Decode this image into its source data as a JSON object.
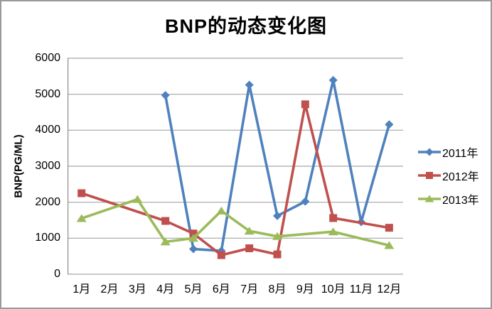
{
  "chart_data": {
    "type": "line",
    "title": "BNP的动态变化图",
    "ylabel": "BNP(PG/ML)",
    "xlabel": "",
    "ylim": [
      0,
      6000
    ],
    "y_ticks": [
      0,
      1000,
      2000,
      3000,
      4000,
      5000,
      6000
    ],
    "categories": [
      "1月",
      "2月",
      "3月",
      "4月",
      "5月",
      "6月",
      "7月",
      "8月",
      "9月",
      "10月",
      "11月",
      "12月"
    ],
    "series": [
      {
        "name": "2011年",
        "color": "#4F81BD",
        "marker": "diamond",
        "values": [
          null,
          null,
          null,
          4970,
          700,
          650,
          5260,
          1620,
          2020,
          5390,
          1450,
          4160
        ]
      },
      {
        "name": "2012年",
        "color": "#C0504D",
        "marker": "square",
        "values": [
          2250,
          null,
          null,
          1480,
          1130,
          530,
          720,
          550,
          4720,
          1560,
          null,
          1290
        ]
      },
      {
        "name": "2013年",
        "color": "#9BBB59",
        "marker": "triangle",
        "values": [
          1550,
          null,
          2080,
          900,
          1000,
          1760,
          1200,
          1050,
          null,
          1180,
          null,
          800
        ]
      }
    ],
    "legend_position": "right",
    "grid": "horizontal-only",
    "connect_gaps": true
  },
  "colors": {
    "gridline": "#A6A6A6",
    "axis_line": "#8C8C8C",
    "text": "#000000",
    "frame_border": "#9A9A9A",
    "background": "#FFFFFF"
  }
}
